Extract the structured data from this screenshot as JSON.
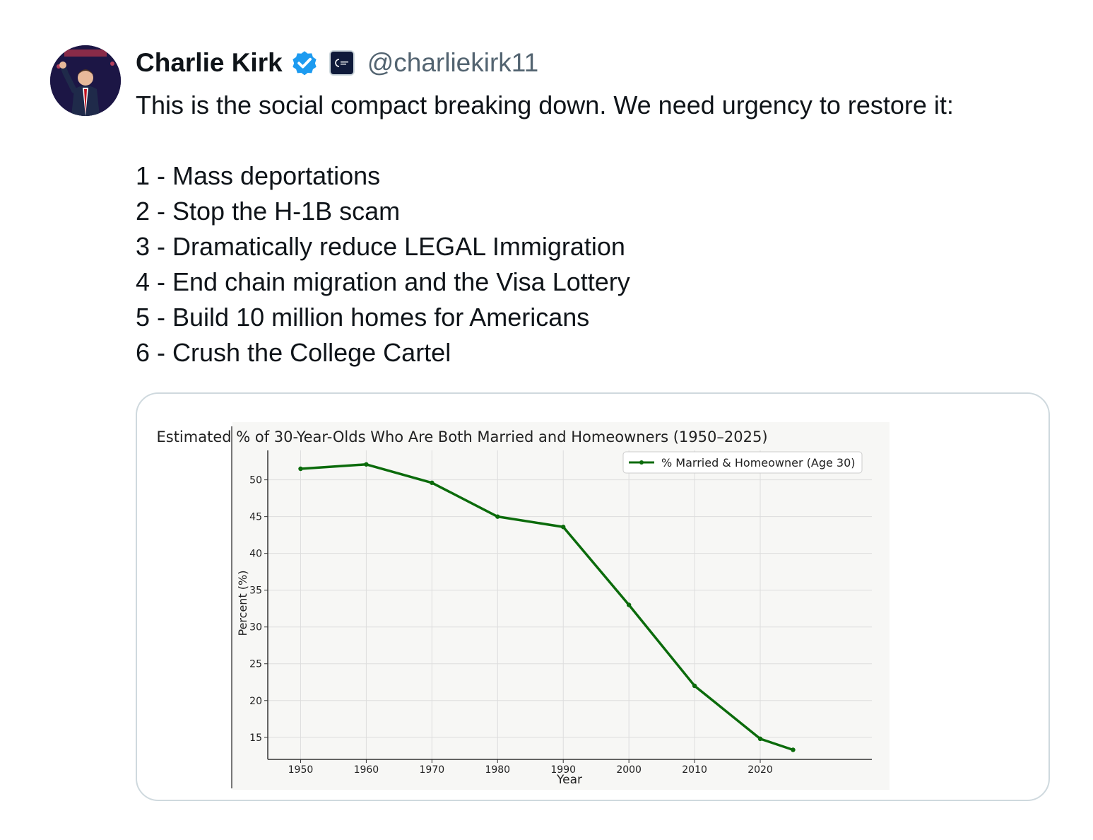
{
  "author": {
    "name": "Charlie Kirk",
    "handle": "@charliekirk11",
    "verified_color": "#1d9bf0"
  },
  "tweet": {
    "intro": "This is the social compact breaking down. We need urgency to restore it:",
    "points": [
      "1 - Mass deportations",
      "2 - Stop the H-1B scam",
      "3 - Dramatically reduce LEGAL Immigration",
      "4 - End chain migration and the Visa Lottery",
      "5 - Build 10 million homes for Americans",
      "6 - Crush the College Cartel"
    ]
  },
  "chart_data": {
    "type": "line",
    "title": "Estimated % of 30-Year-Olds Who Are Both Married and Homeowners (1950–2025)",
    "xlabel": "Year",
    "ylabel": "Percent (%)",
    "xlim": [
      1945,
      2037
    ],
    "ylim": [
      12,
      54
    ],
    "xticks": [
      1950,
      1960,
      1970,
      1980,
      1990,
      2000,
      2010,
      2020
    ],
    "yticks": [
      15,
      20,
      25,
      30,
      35,
      40,
      45,
      50
    ],
    "grid": true,
    "legend_position": "top-right",
    "series": [
      {
        "name": "% Married & Homeowner (Age 30)",
        "color": "#0b6b0b",
        "x": [
          1950,
          1960,
          1970,
          1980,
          1990,
          2000,
          2010,
          2020,
          2025
        ],
        "y": [
          51.5,
          52.1,
          49.6,
          45.0,
          43.6,
          33.0,
          22.0,
          14.8,
          13.3
        ]
      }
    ]
  }
}
